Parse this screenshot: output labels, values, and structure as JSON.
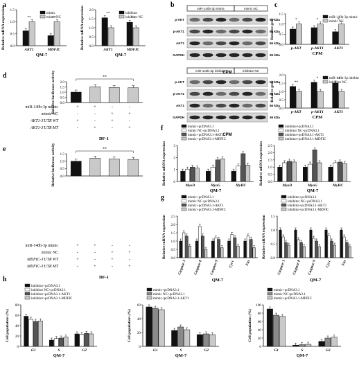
{
  "figure": {
    "panel_letters": [
      "a",
      "b",
      "c",
      "d",
      "e",
      "f",
      "g",
      "h"
    ],
    "colors": {
      "black": "#111111",
      "dark_gray": "#555555",
      "mid_gray": "#8a8a8a",
      "light_gray": "#c9c9c9",
      "white": "#ffffff"
    }
  },
  "blots": {
    "top": {
      "headers": [
        "miR-140b-3p mimic",
        "mimic NC"
      ],
      "rows": [
        "p-AKT",
        "p-AKT1",
        "AKT1",
        "GAPDH"
      ],
      "kda": [
        "56 kDa",
        "56 kDa",
        "56 kDa",
        "36 kDa"
      ],
      "caption": "CPM"
    },
    "bottom": {
      "headers": [
        "miR-140b-3p inhibitor",
        "inhibitor NC"
      ],
      "rows": [
        "p-AKT",
        "p-AKT1",
        "AKT1",
        "GAPDH"
      ],
      "kda": [
        "56 kDa",
        "56 kDa",
        "56 kDa",
        "36 kDa"
      ],
      "caption": "CPM"
    }
  },
  "tables": {
    "d": {
      "row_labels": [
        "miR-140b-3p mimic",
        "mimic NC",
        "AKT1-3'UTR WT",
        "AKT1-3'UTR MT"
      ],
      "signs": [
        [
          "+",
          "+",
          "-",
          "-"
        ],
        [
          "-",
          "-",
          "+",
          "+"
        ],
        [
          "+",
          "-",
          "+",
          "-"
        ],
        [
          "-",
          "+",
          "-",
          "+"
        ]
      ],
      "caption": "DF-1"
    },
    "e": {
      "row_labels": [
        "miR-140b-3p mimic",
        "mimic NC",
        "MDFIC-3'UTR WT",
        "MDFIC-3'UTR MT"
      ],
      "signs": [
        [
          "+",
          "+",
          "-",
          "-"
        ],
        [
          "-",
          "-",
          "+",
          "+"
        ],
        [
          "+",
          "-",
          "+",
          "-"
        ],
        [
          "-",
          "+",
          "-",
          "+"
        ]
      ],
      "caption": "DF-1"
    }
  },
  "chart_data": [
    {
      "id": "a-left",
      "type": "bar",
      "categories": [
        "AKT1",
        "MDFIC"
      ],
      "series": [
        {
          "name": "mimic",
          "values": [
            0.62,
            0.42
          ]
        },
        {
          "name": "mimic NC",
          "values": [
            1.0,
            1.0
          ]
        }
      ],
      "ylabel": "Relative mRNA expression",
      "ylim": [
        0,
        1.5
      ],
      "yticks": [
        "0.0",
        "0.5",
        "1.0",
        "1.5"
      ],
      "sig": [
        "**",
        "**"
      ],
      "caption": "QM-7"
    },
    {
      "id": "a-right",
      "type": "bar",
      "categories": [
        "AKT1",
        "MDFIC"
      ],
      "series": [
        {
          "name": "inhibitor",
          "values": [
            1.55,
            1.3
          ]
        },
        {
          "name": "inhibitor NC",
          "values": [
            1.0,
            1.0
          ]
        }
      ],
      "ylabel": "Relative mRNA expression",
      "ylim": [
        0,
        2.0
      ],
      "yticks": [
        "0.0",
        "0.5",
        "1.0",
        "1.5",
        "2.0"
      ],
      "sig": [
        "**",
        "**"
      ],
      "caption": "QM-7"
    },
    {
      "id": "c-top",
      "type": "bar",
      "categories": [
        "p-AKT",
        "p-AKT1",
        "AKT1"
      ],
      "series": [
        {
          "name": "miR-140b-3p mimic",
          "values": [
            0.75,
            0.82,
            0.62
          ]
        },
        {
          "name": "mimic NC",
          "values": [
            1.0,
            1.0,
            1.0
          ]
        }
      ],
      "ylabel": "Relative grey",
      "ylim": [
        0,
        1.5
      ],
      "yticks": [
        "0.0",
        "0.5",
        "1.0",
        "1.5"
      ],
      "sig": [
        "*",
        "*",
        "*"
      ],
      "caption": "CPM"
    },
    {
      "id": "c-bottom",
      "type": "bar",
      "categories": [
        "p-AKT",
        "p-AKT1",
        "AKT1"
      ],
      "series": [
        {
          "name": "miR-140b-3p inhibitor",
          "values": [
            1.3,
            1.55,
            1.5
          ]
        },
        {
          "name": "inhibitor NC",
          "values": [
            1.0,
            1.0,
            1.0
          ]
        }
      ],
      "ylabel": "Relative grey",
      "ylim": [
        0,
        2.0
      ],
      "yticks": [
        "0.0",
        "0.5",
        "1.0",
        "1.5",
        "2.0"
      ],
      "sig": [
        "**",
        "*",
        "**"
      ],
      "caption": "CPM"
    },
    {
      "id": "d",
      "type": "bar",
      "categories": [
        "1",
        "2",
        "3",
        "4"
      ],
      "values": [
        1.0,
        1.52,
        1.45,
        1.42
      ],
      "ylabel": "Relative luciferase activity",
      "ylim": [
        0,
        2.0
      ],
      "yticks": [
        "0.0",
        "0.5",
        "1.0",
        "1.5",
        "2.0"
      ],
      "sig": [
        "**"
      ]
    },
    {
      "id": "e",
      "type": "bar",
      "categories": [
        "1",
        "2",
        "3",
        "4"
      ],
      "values": [
        1.0,
        1.2,
        1.15,
        1.12
      ],
      "ylabel": "Relative luciferase activity",
      "ylim": [
        0,
        1.5
      ],
      "yticks": [
        "0.0",
        "0.5",
        "1.0",
        "1.5"
      ],
      "sig": [
        "**"
      ]
    },
    {
      "id": "f-left",
      "type": "bar",
      "categories": [
        "MyoD",
        "MyoG",
        "MyHC"
      ],
      "series": [
        {
          "name": "mimic+pcDNA3.1",
          "values": [
            1.0,
            1.0,
            1.0
          ]
        },
        {
          "name": "mimic NC+pcDNA3.1",
          "values": [
            1.2,
            1.4,
            1.5
          ]
        },
        {
          "name": "mimic+pcDNA3.1-AKT1",
          "values": [
            1.4,
            2.1,
            2.7
          ]
        },
        {
          "name": "mimic+pcDNA3.1-MDFIC",
          "values": [
            1.3,
            2.2,
            1.6
          ]
        }
      ],
      "ylabel": "Relative mRNA expression",
      "ylim": [
        0,
        3.5
      ],
      "yticks": [
        "0",
        "1",
        "2",
        "3"
      ],
      "caption": "QM-7"
    },
    {
      "id": "f-right",
      "type": "bar",
      "categories": [
        "MyoD",
        "MyoG",
        "MyHC"
      ],
      "series": [
        {
          "name": "inhibitor+pcDNA3.1",
          "values": [
            1.0,
            1.0,
            1.0
          ]
        },
        {
          "name": "inhibitor NC+pcDNA3.1",
          "values": [
            1.3,
            1.2,
            1.3
          ]
        },
        {
          "name": "inhibitor+pcDNA3.1-AKT1",
          "values": [
            1.4,
            2.2,
            1.35
          ]
        },
        {
          "name": "inhibitor+pcDNA3.1-MDFIC",
          "values": [
            1.35,
            1.3,
            1.25
          ]
        }
      ],
      "ylabel": "Relative mRNA expression",
      "ylim": [
        0,
        2.5
      ],
      "yticks": [
        "0.0",
        "0.5",
        "1.0",
        "1.5",
        "2.0",
        "2.5"
      ],
      "caption": "QM-7"
    },
    {
      "id": "g-left",
      "type": "bar",
      "categories": [
        "Caspase 3",
        "Caspase 8",
        "Caspase 9",
        "Cyt c",
        "Fas"
      ],
      "series": [
        {
          "name": "mimic+pcDNA3.1",
          "values": [
            1.0,
            1.0,
            1.0,
            1.0,
            1.0
          ]
        },
        {
          "name": "mimic NC+pcDNA3.1",
          "values": [
            1.5,
            1.9,
            1.2,
            1.4,
            1.3
          ]
        },
        {
          "name": "mimic+pcDNA3.1-AKT1",
          "values": [
            1.3,
            1.3,
            1.1,
            1.2,
            1.1
          ]
        },
        {
          "name": "mimic+pcDNA3.1-MDFIC",
          "values": [
            0.7,
            0.5,
            0.6,
            0.7,
            0.6
          ]
        }
      ],
      "ylabel": "Relative mRNA expression",
      "ylim": [
        0,
        2.5
      ],
      "yticks": [
        "0.0",
        "0.5",
        "1.0",
        "1.5",
        "2.0",
        "2.5"
      ],
      "caption": "QM-7"
    },
    {
      "id": "g-right",
      "type": "bar",
      "categories": [
        "Caspase 3",
        "Caspase 8",
        "Caspase 9",
        "Cyt c",
        "Fas"
      ],
      "series": [
        {
          "name": "inhibitor+pcDNA3.1",
          "values": [
            1.0,
            1.0,
            1.0,
            1.0,
            1.0
          ]
        },
        {
          "name": "inhibitor NC+pcDNA3.1",
          "values": [
            0.75,
            0.65,
            0.7,
            0.8,
            0.75
          ]
        },
        {
          "name": "inhibitor+pcDNA3.1-AKT1",
          "values": [
            0.55,
            0.55,
            0.6,
            0.6,
            0.55
          ]
        },
        {
          "name": "inhibitor+pcDNA3.1-MDFIC",
          "values": [
            0.45,
            0.4,
            0.4,
            0.45,
            0.4
          ]
        }
      ],
      "ylabel": "Relative mRNA expression",
      "ylim": [
        0,
        1.5
      ],
      "yticks": [
        "0.0",
        "0.5",
        "1.0",
        "1.5"
      ],
      "caption": "QM-7"
    },
    {
      "id": "h-1",
      "type": "bar",
      "categories": [
        "G1",
        "S",
        "G2"
      ],
      "series": [
        {
          "name": "inhibitor+pcDNA3.1",
          "values": [
            58,
            12,
            24
          ]
        },
        {
          "name": "inhibitor NC+pcDNA3.1",
          "values": [
            52,
            15,
            23
          ]
        },
        {
          "name": "inhibitor+pcDNA3.1-AKT1",
          "values": [
            48,
            16,
            25
          ]
        },
        {
          "name": "inhibitor+pcDNA3.1-MDFIC",
          "values": [
            49,
            18,
            24
          ]
        }
      ],
      "ylabel": "Cell population (%)",
      "ylim": [
        0,
        80
      ],
      "yticks": [
        "0",
        "20",
        "40",
        "60",
        "80"
      ],
      "caption": "QM-7"
    },
    {
      "id": "h-2",
      "type": "bar",
      "categories": [
        "G1",
        "S",
        "G2"
      ],
      "series": [
        {
          "name": "mimic+pcDNA3.1",
          "values": [
            57,
            23,
            17
          ]
        },
        {
          "name": "mimic NC+pcDNA3.1",
          "values": [
            55,
            28,
            18
          ]
        },
        {
          "name": "mimic+pcDNA3.1-AKT1",
          "values": [
            53,
            24,
            17
          ]
        }
      ],
      "ylabel": "Cell population (%)",
      "ylim": [
        0,
        60
      ],
      "yticks": [
        "0",
        "20",
        "40",
        "60"
      ],
      "caption": "QM-7"
    },
    {
      "id": "h-3",
      "type": "bar",
      "categories": [
        "G1",
        "S",
        "G2"
      ],
      "series": [
        {
          "name": "mimic+pcDNA3.1",
          "values": [
            90,
            3,
            12
          ]
        },
        {
          "name": "mimic NC+pcDNA3.1",
          "values": [
            75,
            4,
            20
          ]
        },
        {
          "name": "mimic+pcDNA3.1-MDFIC",
          "values": [
            72,
            5,
            22
          ]
        }
      ],
      "ylabel": "Cell population (%)",
      "ylim": [
        0,
        100
      ],
      "yticks": [
        "0",
        "20",
        "40",
        "60",
        "80",
        "100"
      ],
      "caption": "QM-7"
    }
  ]
}
